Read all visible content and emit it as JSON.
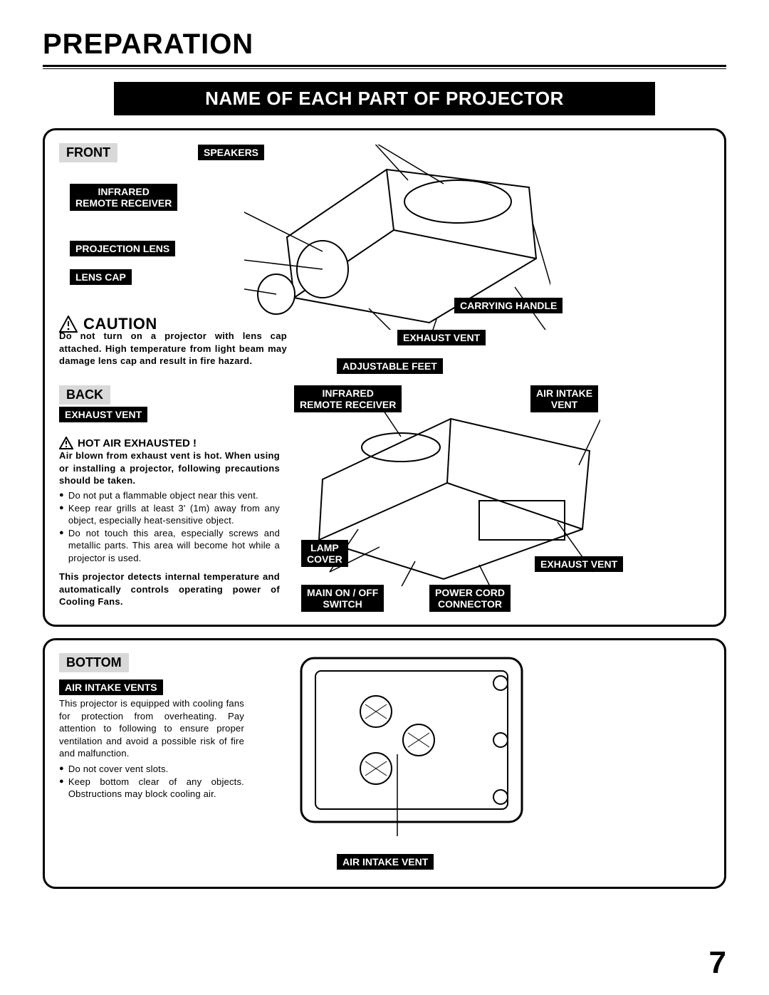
{
  "page": {
    "title": "PREPARATION",
    "section_header": "NAME OF EACH PART OF PROJECTOR",
    "page_number": "7"
  },
  "top_panel": {
    "front_label": "FRONT",
    "back_label": "BACK",
    "labels": {
      "speakers": "SPEAKERS",
      "infrared_remote_receiver": "INFRARED\nREMOTE RECEIVER",
      "projection_lens": "PROJECTION LENS",
      "lens_cap": "LENS CAP",
      "carrying_handle": "CARRYING HANDLE",
      "exhaust_vent_front": "EXHAUST VENT",
      "adjustable_feet": "ADJUSTABLE FEET",
      "exhaust_vent_back": "EXHAUST VENT",
      "infrared_remote_receiver_back": "INFRARED\nREMOTE RECEIVER",
      "air_intake_vent": "AIR INTAKE\nVENT",
      "lamp_cover": "LAMP\nCOVER",
      "exhaust_vent_side": "EXHAUST VENT",
      "main_on_off_switch": "MAIN ON / OFF\nSWITCH",
      "power_cord_connector": "POWER CORD\nCONNECTOR"
    },
    "caution_title": "CAUTION",
    "caution_body": "Do not turn on a projector with lens cap attached. High temperature from light beam may damage lens cap and result in fire hazard.",
    "hot_air_title": "HOT AIR EXHAUSTED !",
    "hot_air_intro": "Air blown from exhaust vent is hot.  When using or installing a projector, following precautions should be taken.",
    "hot_air_bullets": [
      "Do not put a flammable object near this vent.",
      "Keep rear grills at least 3' (1m) away from any object, especially heat-sensitive object.",
      "Do not touch this area, especially screws and metallic parts.  This area will become hot while a projector is used."
    ],
    "hot_air_outro": "This projector detects internal temperature and automatically controls operating power of Cooling Fans."
  },
  "bottom_panel": {
    "bottom_label": "BOTTOM",
    "air_intake_vents_label": "AIR INTAKE VENTS",
    "air_intake_vent_label": "AIR INTAKE VENT",
    "intro": "This projector is equipped with cooling fans for protection from overheating. Pay attention to following to ensure proper ventilation and avoid a possible risk of fire and malfunction.",
    "bullets": [
      "Do not cover vent slots.",
      "Keep bottom clear of any objects. Obstructions may block cooling air."
    ]
  },
  "colors": {
    "black": "#000000",
    "white": "#ffffff",
    "gray_label": "#d9d9d9"
  }
}
